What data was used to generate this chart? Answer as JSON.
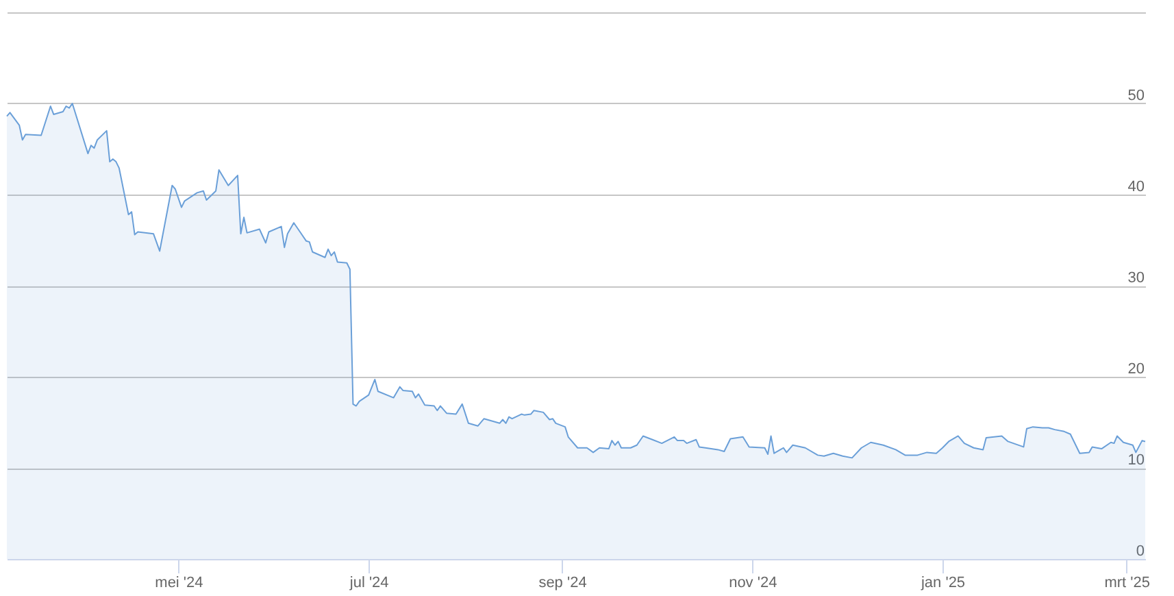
{
  "chart_data": {
    "type": "area",
    "x": [
      "2024-03-07",
      "2024-03-08",
      "2024-03-11",
      "2024-03-12",
      "2024-03-13",
      "2024-03-18",
      "2024-03-21",
      "2024-03-22",
      "2024-03-25",
      "2024-03-26",
      "2024-03-27",
      "2024-03-28",
      "2024-04-02",
      "2024-04-03",
      "2024-04-04",
      "2024-04-05",
      "2024-04-08",
      "2024-04-09",
      "2024-04-10",
      "2024-04-11",
      "2024-04-12",
      "2024-04-15",
      "2024-04-16",
      "2024-04-17",
      "2024-04-18",
      "2024-04-23",
      "2024-04-25",
      "2024-04-29",
      "2024-04-30",
      "2024-05-02",
      "2024-05-03",
      "2024-05-07",
      "2024-05-09",
      "2024-05-10",
      "2024-05-13",
      "2024-05-14",
      "2024-05-17",
      "2024-05-20",
      "2024-05-21",
      "2024-05-22",
      "2024-05-23",
      "2024-05-27",
      "2024-05-29",
      "2024-05-30",
      "2024-06-03",
      "2024-06-04",
      "2024-06-05",
      "2024-06-07",
      "2024-06-09",
      "2024-06-11",
      "2024-06-12",
      "2024-06-13",
      "2024-06-17",
      "2024-06-18",
      "2024-06-19",
      "2024-06-20",
      "2024-06-21",
      "2024-06-24",
      "2024-06-25",
      "2024-06-26",
      "2024-06-27",
      "2024-06-28",
      "2024-07-01",
      "2024-07-03",
      "2024-07-04",
      "2024-07-09",
      "2024-07-11",
      "2024-07-12",
      "2024-07-15",
      "2024-07-16",
      "2024-07-17",
      "2024-07-19",
      "2024-07-22",
      "2024-07-23",
      "2024-07-24",
      "2024-07-26",
      "2024-07-29",
      "2024-07-31",
      "2024-08-02",
      "2024-08-05",
      "2024-08-07",
      "2024-08-12",
      "2024-08-13",
      "2024-08-14",
      "2024-08-15",
      "2024-08-16",
      "2024-08-19",
      "2024-08-20",
      "2024-08-22",
      "2024-08-23",
      "2024-08-26",
      "2024-08-28",
      "2024-08-29",
      "2024-08-30",
      "2024-09-02",
      "2024-09-03",
      "2024-09-06",
      "2024-09-09",
      "2024-09-11",
      "2024-09-13",
      "2024-09-16",
      "2024-09-17",
      "2024-09-18",
      "2024-09-19",
      "2024-09-20",
      "2024-09-23",
      "2024-09-25",
      "2024-09-27",
      "2024-09-30",
      "2024-10-03",
      "2024-10-07",
      "2024-10-08",
      "2024-10-10",
      "2024-10-11",
      "2024-10-14",
      "2024-10-15",
      "2024-10-17",
      "2024-10-21",
      "2024-10-23",
      "2024-10-25",
      "2024-10-29",
      "2024-10-31",
      "2024-11-05",
      "2024-11-06",
      "2024-11-07",
      "2024-11-08",
      "2024-11-10",
      "2024-11-11",
      "2024-11-12",
      "2024-11-14",
      "2024-11-18",
      "2024-11-22",
      "2024-11-24",
      "2024-11-27",
      "2024-11-30",
      "2024-12-03",
      "2024-12-06",
      "2024-12-09",
      "2024-12-13",
      "2024-12-17",
      "2024-12-20",
      "2024-12-24",
      "2024-12-27",
      "2024-12-30",
      "2025-01-01",
      "2025-01-03",
      "2025-01-06",
      "2025-01-08",
      "2025-01-11",
      "2025-01-14",
      "2025-01-15",
      "2025-01-20",
      "2025-01-22",
      "2025-01-27",
      "2025-01-28",
      "2025-01-30",
      "2025-02-02",
      "2025-02-04",
      "2025-02-06",
      "2025-02-09",
      "2025-02-11",
      "2025-02-14",
      "2025-02-17",
      "2025-02-18",
      "2025-02-21",
      "2025-02-24",
      "2025-02-25",
      "2025-02-26",
      "2025-02-28",
      "2025-03-03",
      "2025-03-04",
      "2025-03-06",
      "2025-03-07"
    ],
    "series": [
      {
        "color": "#6a9fd8",
        "values": [
          48.6,
          49.0,
          47.6,
          46.0,
          46.6,
          46.5,
          49.7,
          48.8,
          49.1,
          49.7,
          49.5,
          50.0,
          44.5,
          45.4,
          45.1,
          46.0,
          47.0,
          43.6,
          43.9,
          43.6,
          42.9,
          37.8,
          38.1,
          35.6,
          35.9,
          35.7,
          33.8,
          41.0,
          40.6,
          38.6,
          39.3,
          40.2,
          40.4,
          39.4,
          40.4,
          42.7,
          41.0,
          42.1,
          35.7,
          37.5,
          35.8,
          36.2,
          34.7,
          35.9,
          36.5,
          34.2,
          35.7,
          36.9,
          35.9,
          34.9,
          34.8,
          33.7,
          33.1,
          34.0,
          33.3,
          33.7,
          32.6,
          32.5,
          31.8,
          17.0,
          16.8,
          17.3,
          18.0,
          19.7,
          18.4,
          17.7,
          18.9,
          18.5,
          18.4,
          17.7,
          18.1,
          16.9,
          16.8,
          16.3,
          16.8,
          16.0,
          15.9,
          17.0,
          14.9,
          14.6,
          15.4,
          14.9,
          15.3,
          14.9,
          15.6,
          15.4,
          15.9,
          15.8,
          15.9,
          16.3,
          16.1,
          15.3,
          15.4,
          14.9,
          14.5,
          13.4,
          12.2,
          12.2,
          11.7,
          12.2,
          12.1,
          13.0,
          12.5,
          12.9,
          12.2,
          12.2,
          12.5,
          13.5,
          13.1,
          12.7,
          13.4,
          13.0,
          13.0,
          12.7,
          13.1,
          12.3,
          12.2,
          12.0,
          11.8,
          13.2,
          13.4,
          12.3,
          12.2,
          11.5,
          13.5,
          11.6,
          12.0,
          12.2,
          11.7,
          12.5,
          12.2,
          11.4,
          11.3,
          11.6,
          11.3,
          11.1,
          12.2,
          12.8,
          12.5,
          12.0,
          11.4,
          11.4,
          11.7,
          11.6,
          12.2,
          12.9,
          13.5,
          12.7,
          12.2,
          12.0,
          13.3,
          13.5,
          12.9,
          12.3,
          14.3,
          14.5,
          14.4,
          14.4,
          14.2,
          14.0,
          13.7,
          11.6,
          11.7,
          12.3,
          12.1,
          12.8,
          12.7,
          13.5,
          12.8,
          12.5,
          11.7,
          13.0,
          12.9
        ]
      }
    ],
    "xlim": [
      "2024-03-07",
      "2025-03-07"
    ],
    "xticks": [
      {
        "value": "2024-05-01",
        "label": "mei '24"
      },
      {
        "value": "2024-07-01",
        "label": "jul '24"
      },
      {
        "value": "2024-09-01",
        "label": "sep '24"
      },
      {
        "value": "2024-11-01",
        "label": "nov '24"
      },
      {
        "value": "2025-01-01",
        "label": "jan '25"
      },
      {
        "value": "2025-03-01",
        "label": "mrt '25"
      }
    ],
    "ylim": [
      0,
      60
    ],
    "yticks": [
      0,
      10,
      20,
      30,
      40,
      50,
      {
        "value": 60,
        "label": null
      }
    ],
    "grid": "y"
  }
}
